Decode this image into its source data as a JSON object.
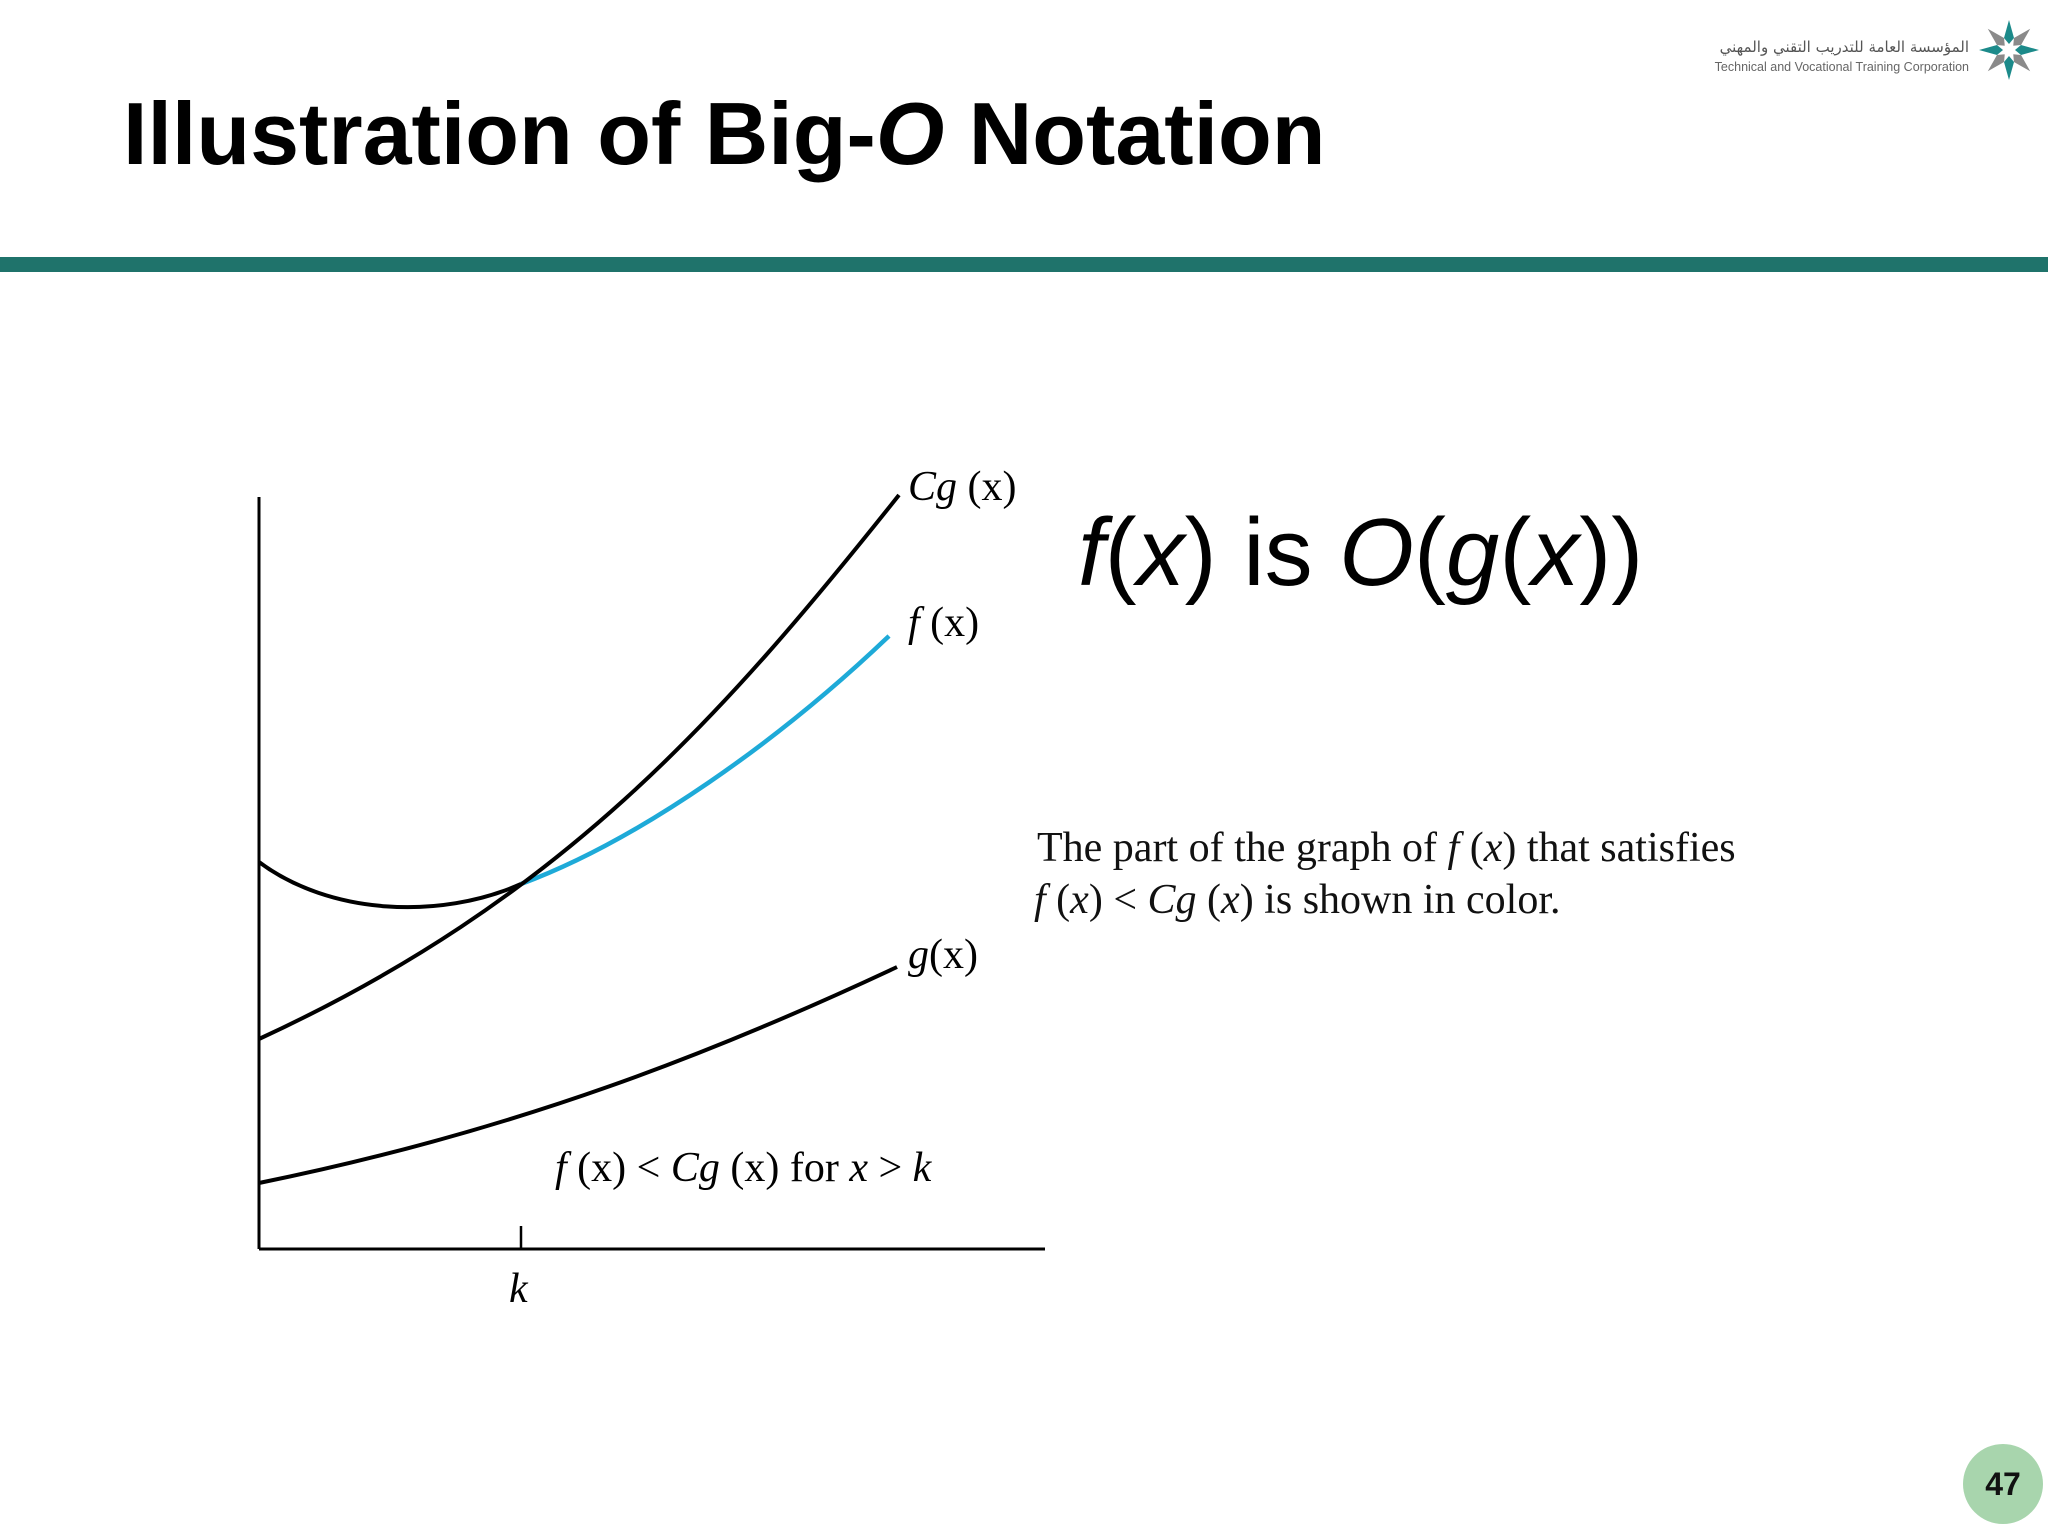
{
  "slide": {
    "title_before": "Illustration of Big-",
    "title_italic": "O",
    "title_after": " Notation",
    "page_number": "47"
  },
  "logo": {
    "arabic_text": "المؤسسة العامة للتدريب التقني والمهني",
    "english_text": "Technical and Vocational Training Corporation"
  },
  "statement": {
    "f": "f",
    "open1": "(",
    "x1": "x",
    "close1": ")",
    "is": " is ",
    "O": "O",
    "open2": "(",
    "g": "g",
    "open3": "(",
    "x2": "x",
    "close3": "))"
  },
  "diagram": {
    "labels": {
      "Cg": "Cg",
      "Cg_arg": " (x)",
      "f": "f",
      "f_arg": " (x)",
      "g": "g",
      "g_arg": "(x)",
      "k": "k",
      "cond_f": "f",
      "cond_fx": " (x) < ",
      "cond_Cg": "Cg",
      "cond_x1": " (x)",
      "cond_for": " for ",
      "cond_x2": "x",
      "cond_gt": " > ",
      "cond_k": "k"
    }
  },
  "caption": {
    "line1_a": "The part of the graph of ",
    "line1_f": "f",
    "line1_b": " (",
    "line1_x": "x",
    "line1_c": ") that satisfies",
    "line2_f": "f",
    "line2_a": " (",
    "line2_x": "x",
    "line2_b": ") < ",
    "line2_Cg": "Cg",
    "line2_c": " (",
    "line2_x2": "x",
    "line2_d": ") is shown in color."
  },
  "colors": {
    "accent_bar": "#1f736b",
    "highlight_curve": "#1eaad8",
    "page_badge": "#a8d5ad",
    "logo_teal": "#1c8a8a",
    "logo_gray": "#8a8a8a"
  },
  "icons": {
    "logo": "tvtc-star-logo"
  }
}
